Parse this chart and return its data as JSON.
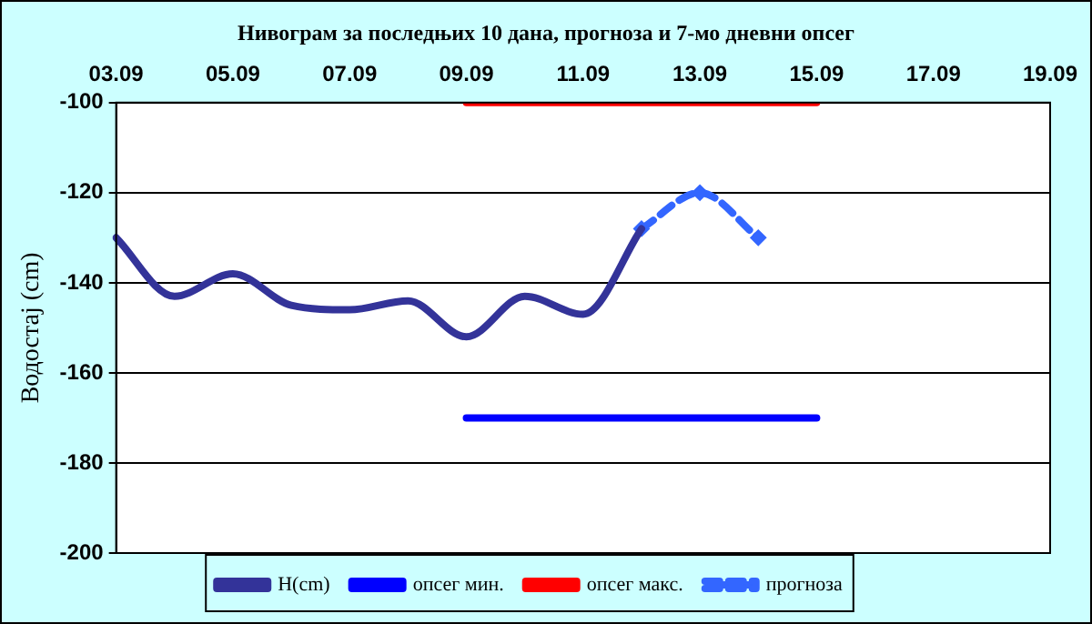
{
  "chart_data": {
    "type": "line",
    "title": "Нивограм за последњих 10 дана, прогноза и 7-мо дневни опсег",
    "ylabel": "Водостај (cm)",
    "categories": [
      "03.09",
      null,
      "05.09",
      null,
      "07.09",
      null,
      "09.09",
      null,
      "11.09",
      null,
      "13.09",
      null,
      "15.09",
      null,
      "17.09",
      null,
      "19.09"
    ],
    "series": [
      {
        "name": "H(cm)",
        "color": "#333399",
        "values": [
          -130,
          -143,
          -138,
          -145,
          -146,
          -144,
          -152,
          -143,
          -147,
          -128,
          null,
          null,
          null,
          null,
          null,
          null,
          null
        ]
      },
      {
        "name": "опсег мин.",
        "color": "#0000ff",
        "values": [
          null,
          null,
          null,
          null,
          null,
          null,
          -170,
          -170,
          -170,
          -170,
          -170,
          -170,
          -170,
          null,
          null,
          null,
          null
        ]
      },
      {
        "name": "опсег макс.",
        "color": "#ff0000",
        "values": [
          null,
          null,
          null,
          null,
          null,
          null,
          -100,
          -100,
          -100,
          -100,
          -100,
          -100,
          -100,
          null,
          null,
          null,
          null
        ]
      },
      {
        "name": "прогноза",
        "color": "#3366ff",
        "marker": "diamond",
        "line_style": "dashed",
        "values": [
          null,
          null,
          null,
          null,
          null,
          null,
          null,
          null,
          null,
          -128,
          -120,
          -130,
          null,
          null,
          null,
          null,
          null
        ]
      }
    ],
    "ylim": [
      -200,
      -100
    ],
    "yticks": [
      -200,
      -180,
      -160,
      -140,
      -120,
      -100
    ],
    "grid": "y",
    "legend": "bottom"
  }
}
